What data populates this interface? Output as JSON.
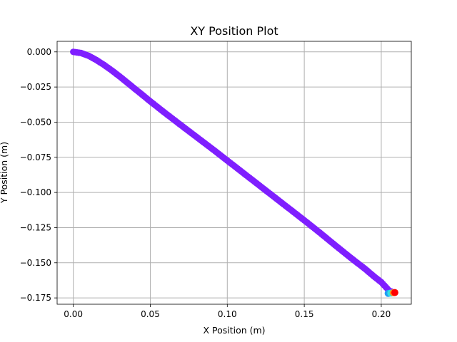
{
  "chart_data": {
    "type": "scatter",
    "title": "XY Position Plot",
    "xlabel": "X Position (m)",
    "ylabel": "Y Position (m)",
    "xlim": [
      -0.0105,
      0.2195
    ],
    "ylim": [
      -0.1795,
      0.0075
    ],
    "grid": true,
    "x_ticks": [
      0.0,
      0.05,
      0.1,
      0.15,
      0.2
    ],
    "x_tick_labels": [
      "0.00",
      "0.05",
      "0.10",
      "0.15",
      "0.20"
    ],
    "y_ticks": [
      0.0,
      -0.025,
      -0.05,
      -0.075,
      -0.1,
      -0.125,
      -0.15,
      -0.175
    ],
    "y_tick_labels": [
      "0.000",
      "−0.025",
      "−0.050",
      "−0.075",
      "−0.100",
      "−0.125",
      "−0.150",
      "−0.175"
    ],
    "trajectory": [
      [
        0.0,
        0.0
      ],
      [
        0.005,
        -0.0008
      ],
      [
        0.01,
        -0.0028
      ],
      [
        0.015,
        -0.0058
      ],
      [
        0.02,
        -0.0093
      ],
      [
        0.025,
        -0.0132
      ],
      [
        0.03,
        -0.0174
      ],
      [
        0.035,
        -0.0218
      ],
      [
        0.04,
        -0.0263
      ],
      [
        0.045,
        -0.0307
      ],
      [
        0.05,
        -0.0352
      ],
      [
        0.06,
        -0.0438
      ],
      [
        0.07,
        -0.0522
      ],
      [
        0.08,
        -0.0605
      ],
      [
        0.09,
        -0.0688
      ],
      [
        0.1,
        -0.0773
      ],
      [
        0.11,
        -0.0858
      ],
      [
        0.12,
        -0.0943
      ],
      [
        0.13,
        -0.1028
      ],
      [
        0.14,
        -0.1113
      ],
      [
        0.15,
        -0.1198
      ],
      [
        0.16,
        -0.1285
      ],
      [
        0.17,
        -0.1375
      ],
      [
        0.18,
        -0.1463
      ],
      [
        0.19,
        -0.1548
      ],
      [
        0.195,
        -0.1595
      ],
      [
        0.2,
        -0.1638
      ],
      [
        0.205,
        -0.1697
      ],
      [
        0.208,
        -0.1712
      ]
    ],
    "trajectory_color": "#7f1fff",
    "highlight_points": [
      {
        "x": 0.2045,
        "y": -0.1718,
        "color": "#1f9ef5"
      },
      {
        "x": 0.2062,
        "y": -0.1716,
        "color": "#33e0e0"
      },
      {
        "x": 0.2078,
        "y": -0.1713,
        "color": "#ff8c1a"
      },
      {
        "x": 0.2088,
        "y": -0.1712,
        "color": "#ff0000"
      }
    ]
  }
}
